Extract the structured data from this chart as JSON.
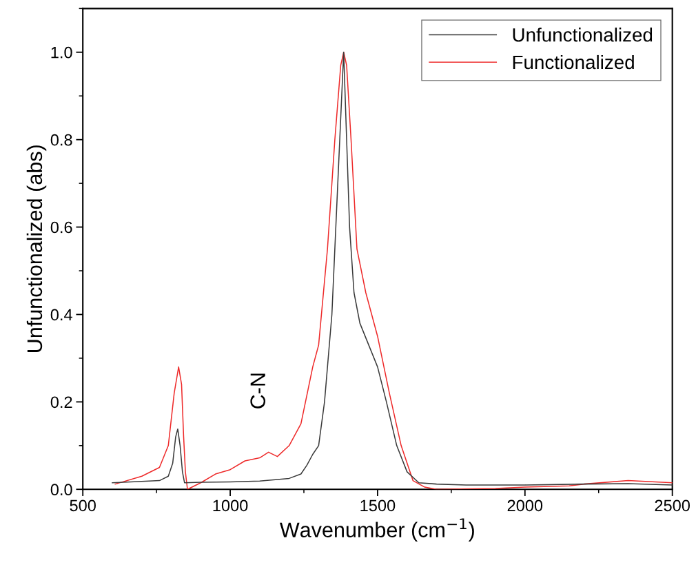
{
  "chart_data": {
    "type": "line",
    "xlabel": "Wavenumber (cm$^{−1}$)",
    "ylabel": "Unfunctionalized (abs)",
    "annotations": [
      "C-N"
    ],
    "xlim": [
      500,
      2500
    ],
    "ylim": [
      0,
      1.1
    ],
    "xticks": [
      500,
      {
        "value": 750,
        "label": null
      },
      1000,
      {
        "value": 1250,
        "label": null
      },
      1500,
      {
        "value": 1750,
        "label": null
      },
      2000,
      {
        "value": 2250,
        "label": null
      },
      2500
    ],
    "yticks": [
      "0.0",
      {
        "value": 0.1,
        "label": null
      },
      {
        "value": 0.2,
        "label": "0.2"
      },
      {
        "value": 0.3,
        "label": null
      },
      {
        "value": 0.4,
        "label": "0.4"
      },
      {
        "value": 0.5,
        "label": null
      },
      {
        "value": 0.6,
        "label": "0.6"
      },
      {
        "value": 0.7,
        "label": null
      },
      {
        "value": 0.8,
        "label": "0.8"
      },
      {
        "value": 0.9,
        "label": null
      },
      {
        "value": 1.0,
        "label": "1.0"
      },
      {
        "value": 1.1,
        "label": null
      }
    ],
    "grid": false,
    "legend": "top right",
    "line_style": "solid",
    "marker": "none",
    "series": [
      {
        "name": "Unfunctionalized",
        "color": "#3a3a3a",
        "x": [
          600,
          700,
          760,
          790,
          805,
          815,
          822,
          830,
          838,
          845,
          900,
          1000,
          1100,
          1200,
          1240,
          1260,
          1280,
          1300,
          1320,
          1345,
          1365,
          1385,
          1395,
          1405,
          1420,
          1440,
          1470,
          1500,
          1530,
          1565,
          1600,
          1640,
          1700,
          1800,
          2000,
          2200,
          2350,
          2500
        ],
        "values": [
          0.015,
          0.018,
          0.02,
          0.03,
          0.06,
          0.12,
          0.138,
          0.1,
          0.04,
          0.015,
          0.016,
          0.017,
          0.019,
          0.025,
          0.035,
          0.055,
          0.08,
          0.1,
          0.2,
          0.4,
          0.7,
          1.0,
          0.8,
          0.6,
          0.45,
          0.38,
          0.33,
          0.28,
          0.2,
          0.1,
          0.04,
          0.015,
          0.012,
          0.01,
          0.01,
          0.012,
          0.013,
          0.01
        ]
      },
      {
        "name": "Functionalized",
        "color": "#ee2a2a",
        "x": [
          610,
          700,
          760,
          790,
          810,
          825,
          835,
          842,
          848,
          855,
          900,
          950,
          1000,
          1050,
          1100,
          1130,
          1160,
          1200,
          1240,
          1280,
          1300,
          1330,
          1355,
          1375,
          1385,
          1395,
          1410,
          1430,
          1460,
          1500,
          1540,
          1580,
          1620,
          1660,
          1700,
          1900,
          2000,
          2150,
          2200,
          2350,
          2500
        ],
        "values": [
          0.012,
          0.03,
          0.05,
          0.1,
          0.22,
          0.28,
          0.24,
          0.12,
          0.04,
          0.0,
          0.015,
          0.035,
          0.045,
          0.065,
          0.072,
          0.085,
          0.075,
          0.1,
          0.15,
          0.28,
          0.33,
          0.55,
          0.8,
          0.97,
          1.0,
          0.97,
          0.8,
          0.55,
          0.45,
          0.35,
          0.22,
          0.1,
          0.02,
          0.005,
          0.0,
          0.002,
          0.005,
          0.008,
          0.012,
          0.02,
          0.015
        ]
      }
    ]
  }
}
